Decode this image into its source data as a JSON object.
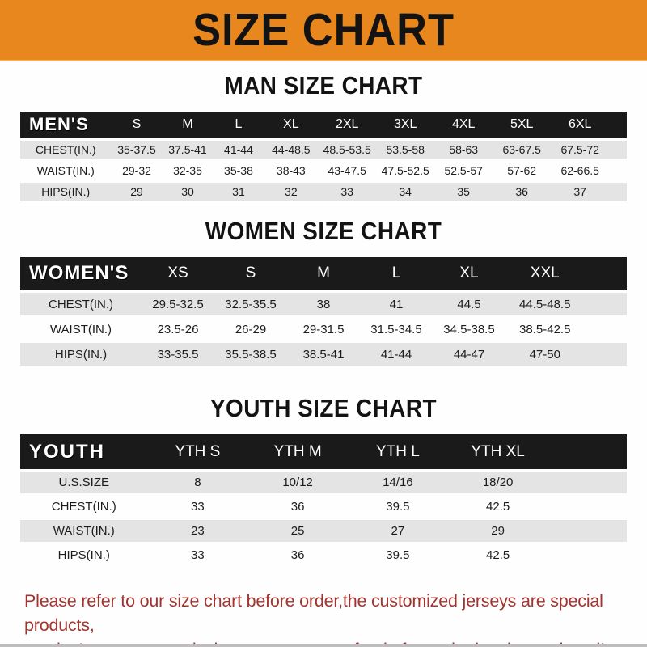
{
  "banner": {
    "title": "SIZE CHART"
  },
  "colors": {
    "banner_bg": "#E8871E",
    "header_bar_bg": "#1A1A1A",
    "stripe_gray": "#E4E4E4",
    "note_red": "#A23430"
  },
  "tables": {
    "men": {
      "title": "MAN SIZE CHART",
      "label": "MEN'S",
      "sizes": [
        "S",
        "M",
        "L",
        "XL",
        "2XL",
        "3XL",
        "4XL",
        "5XL",
        "6XL"
      ],
      "rows": [
        {
          "label": "CHEST(IN.)",
          "values": [
            "35-37.5",
            "37.5-41",
            "41-44",
            "44-48.5",
            "48.5-53.5",
            "53.5-58",
            "58-63",
            "63-67.5",
            "67.5-72"
          ]
        },
        {
          "label": "WAIST(IN.)",
          "values": [
            "29-32",
            "32-35",
            "35-38",
            "38-43",
            "43-47.5",
            "47.5-52.5",
            "52.5-57",
            "57-62",
            "62-66.5"
          ]
        },
        {
          "label": "HIPS(IN.)",
          "values": [
            "29",
            "30",
            "31",
            "32",
            "33",
            "34",
            "35",
            "36",
            "37"
          ]
        }
      ]
    },
    "women": {
      "title": "WOMEN SIZE CHART",
      "label": "WOMEN'S",
      "sizes": [
        "XS",
        "S",
        "M",
        "L",
        "XL",
        "XXL"
      ],
      "rows": [
        {
          "label": "CHEST(IN.)",
          "values": [
            "29.5-32.5",
            "32.5-35.5",
            "38",
            "41",
            "44.5",
            "44.5-48.5"
          ]
        },
        {
          "label": "WAIST(IN.)",
          "values": [
            "23.5-26",
            "26-29",
            "29-31.5",
            "31.5-34.5",
            "34.5-38.5",
            "38.5-42.5"
          ]
        },
        {
          "label": "HIPS(IN.)",
          "values": [
            "33-35.5",
            "35.5-38.5",
            "38.5-41",
            "41-44",
            "44-47",
            "47-50"
          ]
        }
      ]
    },
    "youth": {
      "title": "YOUTH SIZE CHART",
      "label": "YOUTH",
      "sizes": [
        "YTH S",
        "YTH M",
        "YTH L",
        "YTH XL"
      ],
      "rows": [
        {
          "label": "U.S.SIZE",
          "values": [
            "8",
            "10/12",
            "14/16",
            "18/20"
          ]
        },
        {
          "label": "CHEST(IN.)",
          "values": [
            "33",
            "36",
            "39.5",
            "42.5"
          ]
        },
        {
          "label": "WAIST(IN.)",
          "values": [
            "23",
            "25",
            "27",
            "29"
          ]
        },
        {
          "label": "HIPS(IN.)",
          "values": [
            "33",
            "36",
            "39.5",
            "42.5"
          ]
        }
      ]
    }
  },
  "note": {
    "line1": "Please refer to our size chart before order,the customized jerseys are special products,",
    "line2": "we don't accept cancel, change, teturn or refund after order has been placed!"
  }
}
